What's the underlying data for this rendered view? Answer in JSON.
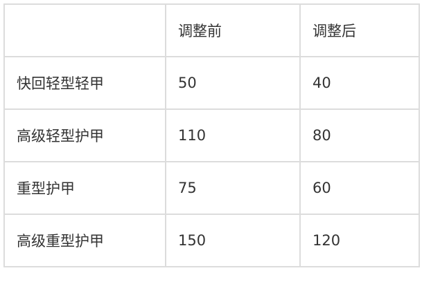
{
  "table": {
    "headers": [
      "",
      "调整前",
      "调整后"
    ],
    "rows": [
      [
        "快回轻型轻甲",
        "50",
        "40"
      ],
      [
        "高级轻型护甲",
        "110",
        "80"
      ],
      [
        "重型护甲",
        "75",
        "60"
      ],
      [
        "高级重型护甲",
        "150",
        "120"
      ]
    ]
  }
}
